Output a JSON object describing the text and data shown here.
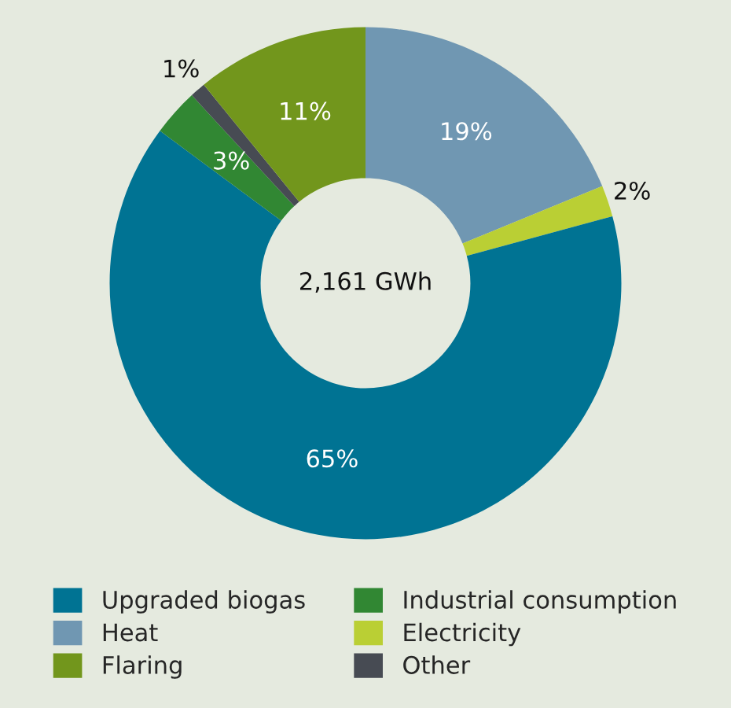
{
  "chart_data": {
    "type": "donut",
    "categories": [
      "Heat",
      "Electricity",
      "Upgraded biogas",
      "Industrial consumption",
      "Other",
      "Flaring"
    ],
    "values": [
      19,
      2,
      65,
      3,
      1,
      11
    ],
    "colors": [
      "#7097b2",
      "#bacf34",
      "#007393",
      "#318733",
      "#474b53",
      "#72961c"
    ],
    "value_labels": [
      "19%",
      "2%",
      "65%",
      "3%",
      "1%",
      "11%"
    ],
    "annotations": [
      "2,161 GWh"
    ],
    "legend": "bottom"
  }
}
